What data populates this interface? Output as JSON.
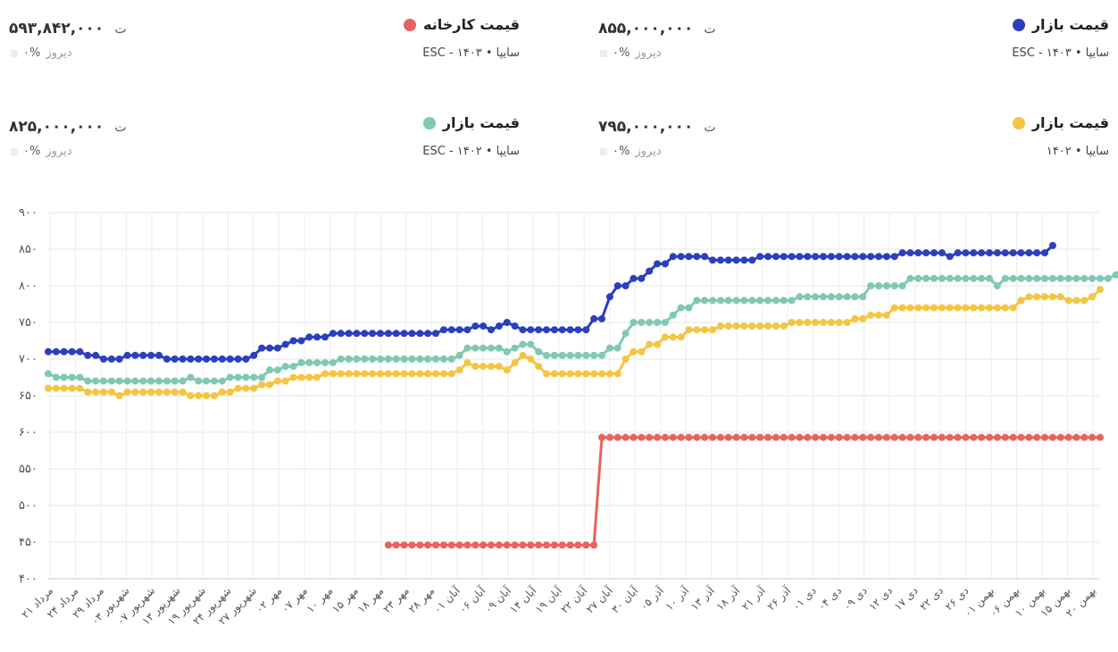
{
  "cards": [
    {
      "title": "قیمت بازار",
      "subtitle": "ESC - سایپا • ۱۴۰۳",
      "price": "۸۵۵,۰۰۰,۰۰۰",
      "currency": "ت",
      "change_pct": "۰%",
      "change_label": "دیروز",
      "color": "#2b3fbf"
    },
    {
      "title": "قیمت کارخانه",
      "subtitle": "ESC - سایپا • ۱۴۰۳",
      "price": "۵۹۳,۸۴۲,۰۰۰",
      "currency": "ت",
      "change_pct": "۰%",
      "change_label": "دیروز",
      "color": "#e8625f"
    },
    {
      "title": "قیمت بازار",
      "subtitle": "سایپا • ۱۴۰۲",
      "price": "۷۹۵,۰۰۰,۰۰۰",
      "currency": "ت",
      "change_pct": "۰%",
      "change_label": "دیروز",
      "color": "#f5c542"
    },
    {
      "title": "قیمت بازار",
      "subtitle": "ESC - سایپا • ۱۴۰۲",
      "price": "۸۲۵,۰۰۰,۰۰۰",
      "currency": "ت",
      "change_pct": "۰%",
      "change_label": "دیروز",
      "color": "#7fc8b4"
    }
  ],
  "chart_data": {
    "type": "line",
    "ylim": [
      400,
      900
    ],
    "yticks": [
      "۹۰۰",
      "۸۵۰",
      "۸۰۰",
      "۷۵۰",
      "۷۰۰",
      "۶۵۰",
      "۶۰۰",
      "۵۵۰",
      "۵۰۰",
      "۴۵۰",
      "۴۰۰"
    ],
    "ytick_values": [
      900,
      850,
      800,
      750,
      700,
      650,
      600,
      550,
      500,
      450,
      400
    ],
    "xticks": [
      "۲۱ مرداد",
      "۲۴ مرداد",
      "۲۹ مرداد",
      "۰۳ شهریور",
      "۰۷ شهریور",
      "۱۳ شهریور",
      "۱۹ شهریور",
      "۲۴ شهریور",
      "۲۷ شهریور",
      "۰۲ مهر",
      "۰۷ مهر",
      "۱۰ مهر",
      "۱۵ مهر",
      "۱۸ مهر",
      "۲۳ مهر",
      "۲۸ مهر",
      "۰۱ آبان",
      "۰۶ آبان",
      "۰۹ آبان",
      "۱۴ آبان",
      "۱۹ آبان",
      "۲۲ آبان",
      "۲۷ آبان",
      "۳۰ آبان",
      "۰۵ آذر",
      "۱۰ آذر",
      "۱۳ آذر",
      "۱۸ آذر",
      "۲۱ آذر",
      "۲۶ آذر",
      "۰۱ دی",
      "۰۴ دی",
      "۰۹ دی",
      "۱۲ دی",
      "۱۷ دی",
      "۲۲ دی",
      "۲۶ دی",
      "۰۱ بهمن",
      "۰۶ بهمن",
      "۱۰ بهمن",
      "۱۵ بهمن",
      "۲۰ بهمن"
    ],
    "series": [
      {
        "name": "قیمت بازار ESC - سایپا ۱۴۰۳",
        "color": "#2b3fbf",
        "start": 0,
        "values": [
          710,
          710,
          710,
          710,
          710,
          705,
          705,
          700,
          700,
          700,
          705,
          705,
          705,
          705,
          705,
          700,
          700,
          700,
          700,
          700,
          700,
          700,
          700,
          700,
          700,
          700,
          705,
          715,
          715,
          715,
          720,
          725,
          725,
          730,
          730,
          730,
          735,
          735,
          735,
          735,
          735,
          735,
          735,
          735,
          735,
          735,
          735,
          735,
          735,
          735,
          740,
          740,
          740,
          740,
          745,
          745,
          740,
          745,
          750,
          745,
          740,
          740,
          740,
          740,
          740,
          740,
          740,
          740,
          740,
          755,
          755,
          785,
          800,
          800,
          810,
          810,
          820,
          830,
          830,
          840,
          840,
          840,
          840,
          840,
          835,
          835,
          835,
          835,
          835,
          835,
          840,
          840,
          840,
          840,
          840,
          840,
          840,
          840,
          840,
          840,
          840,
          840,
          840,
          840,
          840,
          840,
          840,
          840,
          845,
          845,
          845,
          845,
          845,
          845,
          840,
          845,
          845,
          845,
          845,
          845,
          845,
          845,
          845,
          845,
          845,
          845,
          845,
          855
        ]
      },
      {
        "name": "قیمت بازار ESC - سایپا ۱۴۰۲",
        "color": "#7fc8b4",
        "start": 0,
        "values": [
          680,
          675,
          675,
          675,
          675,
          670,
          670,
          670,
          670,
          670,
          670,
          670,
          670,
          670,
          670,
          670,
          670,
          670,
          675,
          670,
          670,
          670,
          670,
          675,
          675,
          675,
          675,
          675,
          685,
          685,
          690,
          690,
          695,
          695,
          695,
          695,
          695,
          700,
          700,
          700,
          700,
          700,
          700,
          700,
          700,
          700,
          700,
          700,
          700,
          700,
          700,
          700,
          705,
          715,
          715,
          715,
          715,
          715,
          710,
          715,
          720,
          720,
          710,
          705,
          705,
          705,
          705,
          705,
          705,
          705,
          705,
          715,
          715,
          735,
          750,
          750,
          750,
          750,
          750,
          760,
          770,
          770,
          780,
          780,
          780,
          780,
          780,
          780,
          780,
          780,
          780,
          780,
          780,
          780,
          780,
          785,
          785,
          785,
          785,
          785,
          785,
          785,
          785,
          785,
          800,
          800,
          800,
          800,
          800,
          810,
          810,
          810,
          810,
          810,
          810,
          810,
          810,
          810,
          810,
          810,
          800,
          810,
          810,
          810,
          810,
          810,
          810,
          810,
          810,
          810,
          810,
          810,
          810,
          810,
          810,
          815,
          825
        ]
      },
      {
        "name": "قیمت بازار سایپا ۱۴۰۲",
        "color": "#f5c542",
        "start": 0,
        "values": [
          660,
          660,
          660,
          660,
          660,
          655,
          655,
          655,
          655,
          650,
          655,
          655,
          655,
          655,
          655,
          655,
          655,
          655,
          650,
          650,
          650,
          650,
          655,
          655,
          660,
          660,
          660,
          665,
          665,
          670,
          670,
          675,
          675,
          675,
          675,
          680,
          680,
          680,
          680,
          680,
          680,
          680,
          680,
          680,
          680,
          680,
          680,
          680,
          680,
          680,
          680,
          680,
          685,
          695,
          690,
          690,
          690,
          690,
          685,
          695,
          705,
          700,
          690,
          680,
          680,
          680,
          680,
          680,
          680,
          680,
          680,
          680,
          680,
          700,
          710,
          710,
          720,
          720,
          730,
          730,
          730,
          740,
          740,
          740,
          740,
          745,
          745,
          745,
          745,
          745,
          745,
          745,
          745,
          745,
          750,
          750,
          750,
          750,
          750,
          750,
          750,
          750,
          755,
          755,
          760,
          760,
          760,
          770,
          770,
          770,
          770,
          770,
          770,
          770,
          770,
          770,
          770,
          770,
          770,
          770,
          770,
          770,
          770,
          780,
          785,
          785,
          785,
          785,
          785,
          780,
          780,
          780,
          785,
          795
        ]
      },
      {
        "name": "قیمت کارخانه ESC - سایپا ۱۴۰۳",
        "color": "#e8625f",
        "start": 43,
        "values": [
          446,
          446,
          446,
          446,
          446,
          446,
          446,
          446,
          446,
          446,
          446,
          446,
          446,
          446,
          446,
          446,
          446,
          446,
          446,
          446,
          446,
          446,
          446,
          446,
          446,
          446,
          446,
          593,
          593,
          593,
          593,
          593,
          593,
          593,
          593,
          593,
          593,
          593,
          593,
          593,
          593,
          593,
          593,
          593,
          593,
          593,
          593,
          593,
          593,
          593,
          593,
          593,
          593,
          593,
          593,
          593,
          593,
          593,
          593,
          593,
          593,
          593,
          593,
          593,
          593,
          593,
          593,
          593,
          593,
          593,
          593,
          593,
          593,
          593,
          593,
          593,
          593,
          593,
          593,
          593,
          593,
          593,
          593,
          593,
          593,
          593,
          593,
          593,
          593,
          593,
          593
        ]
      }
    ],
    "grid": true,
    "legend": "cards-above"
  }
}
